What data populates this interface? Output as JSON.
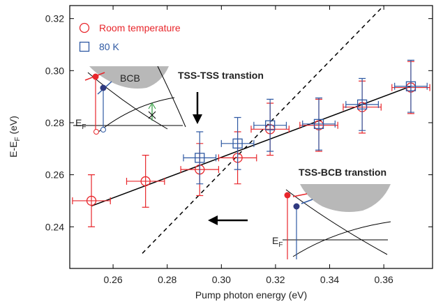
{
  "chart_data": {
    "type": "scatter",
    "xlabel": "Pump photon energy (eV)",
    "ylabel": [
      "E-E",
      "F",
      " (eV)"
    ],
    "xlim": [
      0.244,
      0.378
    ],
    "ylim": [
      0.224,
      0.325
    ],
    "xticks": [
      0.26,
      0.28,
      {
        "value": 0.3,
        "label": "0.30"
      },
      0.32,
      0.34,
      0.36
    ],
    "yticks": [
      0.24,
      0.26,
      0.28,
      {
        "value": 0.3,
        "label": "0.30"
      },
      0.32
    ],
    "series": [
      {
        "name": "Room temperature",
        "color": "#e8262b",
        "marker": "circle",
        "x": [
          0.252,
          0.272,
          0.292,
          0.306,
          0.318,
          0.336,
          0.352,
          0.37
        ],
        "values": [
          0.25,
          0.2575,
          0.262,
          0.2665,
          0.2775,
          0.279,
          0.286,
          0.2935
        ],
        "x_err": [
          0.007,
          0.007,
          0.007,
          0.007,
          0.007,
          0.007,
          0.007,
          0.007
        ],
        "y_err": [
          0.01,
          0.01,
          0.01,
          0.01,
          0.01,
          0.01,
          0.01,
          0.01
        ]
      },
      {
        "name": "80 K",
        "color": "#2f59a3",
        "marker": "square",
        "x": [
          0.292,
          0.306,
          0.318,
          0.336,
          0.352,
          0.37
        ],
        "values": [
          0.2665,
          0.272,
          0.279,
          0.2795,
          0.287,
          0.294
        ],
        "x_err": [
          0.006,
          0.006,
          0.006,
          0.006,
          0.006,
          0.006
        ],
        "y_err": [
          0.01,
          0.01,
          0.01,
          0.01,
          0.01,
          0.01
        ]
      }
    ],
    "lines": [
      {
        "x": [
          0.252,
          0.37
        ],
        "y": [
          0.248,
          0.294
        ],
        "style": "solid",
        "color": "#000000"
      },
      {
        "x": [
          0.2708,
          0.36
        ],
        "y": [
          0.2298,
          0.325
        ],
        "style": "dashed",
        "color": "#000000"
      }
    ],
    "annotations": {
      "tss_tss": "TSS-TSS transtion",
      "tss_bcb": "TSS-BCB transtion",
      "bcb": "BCB",
      "ef1": [
        "E",
        "F"
      ],
      "ef2": [
        "E",
        "F"
      ]
    }
  }
}
